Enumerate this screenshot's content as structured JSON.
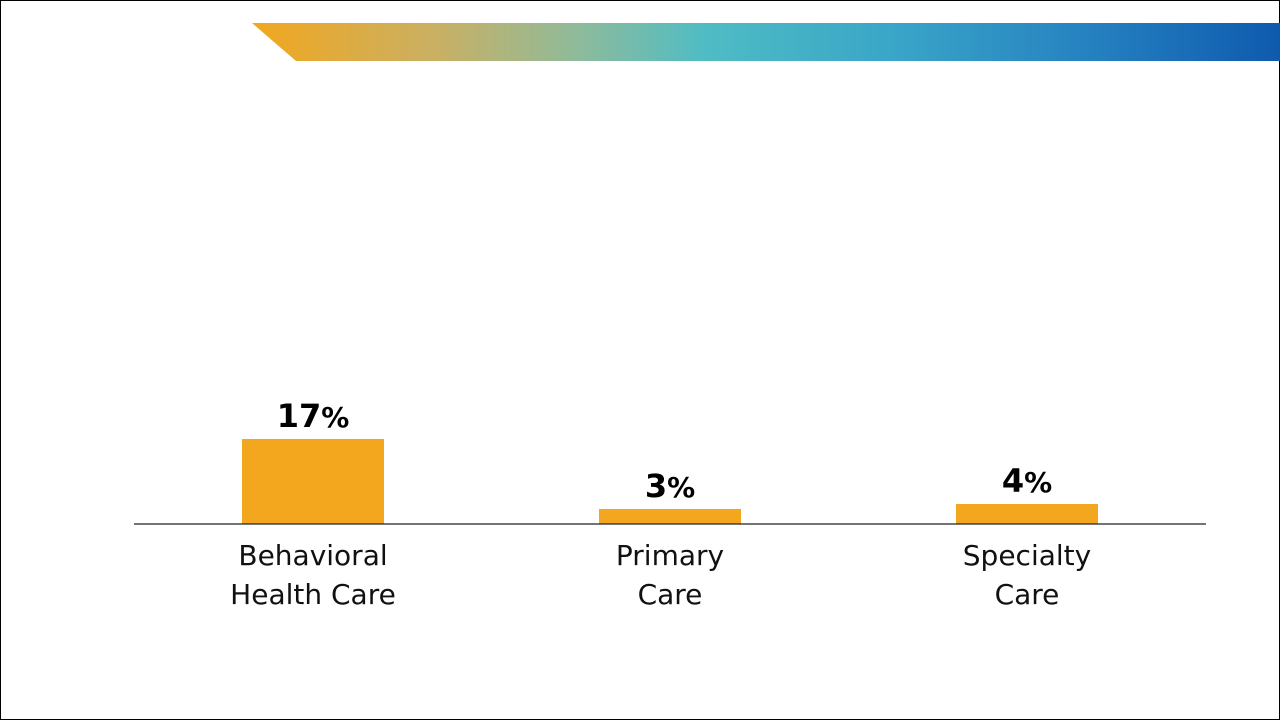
{
  "colors": {
    "bar": "#f2a71e",
    "banner_start": "#f2a71e",
    "banner_mid": "#4fbcc4",
    "banner_end": "#0e5aae",
    "text": "#000000"
  },
  "chart_data": {
    "type": "bar",
    "categories": [
      [
        "Behavioral",
        "Health Care"
      ],
      [
        "Primary",
        "Care"
      ],
      [
        "Specialty",
        "Care"
      ]
    ],
    "values": [
      17,
      3,
      4
    ],
    "value_labels": [
      "17",
      "3",
      "4"
    ],
    "unit": "%",
    "ylim": [
      0,
      100
    ],
    "grid": false,
    "legend": "none",
    "title": "",
    "xlabel": "",
    "ylabel": ""
  }
}
